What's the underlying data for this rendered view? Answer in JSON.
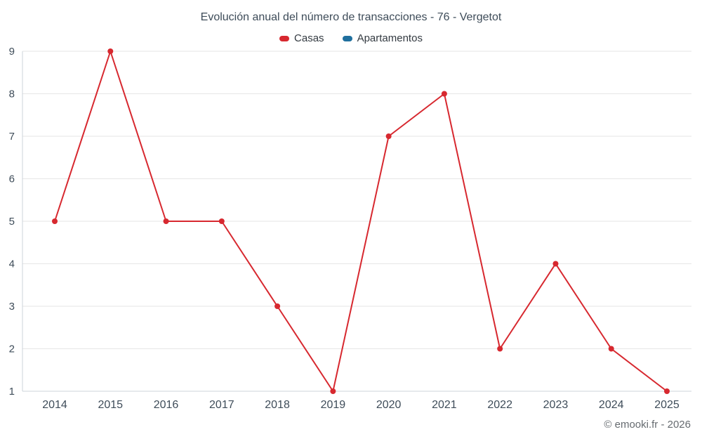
{
  "page": {
    "footer_credit": "© emooki.fr - 2026"
  },
  "chart_data": {
    "type": "line",
    "title": "Evolución anual del número de transacciones - 76 - Vergetot",
    "x": [
      2014,
      2015,
      2016,
      2017,
      2018,
      2019,
      2020,
      2021,
      2022,
      2023,
      2024,
      2025
    ],
    "series": [
      {
        "name": "Casas",
        "color": "#d7282f",
        "values": [
          5,
          9,
          5,
          5,
          3,
          1,
          7,
          8,
          2,
          4,
          2,
          1
        ]
      },
      {
        "name": "Apartamentos",
        "color": "#1f6f9e",
        "values": []
      }
    ],
    "xlabel": "",
    "ylabel": "",
    "ylim": [
      1,
      9
    ],
    "yticks": [
      1,
      2,
      3,
      4,
      5,
      6,
      7,
      8,
      9
    ],
    "grid": true,
    "legend_position": "top",
    "axis_text_color": "#3e4c59",
    "grid_color": "#e6e6e6",
    "axis_line_color": "#ccd3d9"
  }
}
